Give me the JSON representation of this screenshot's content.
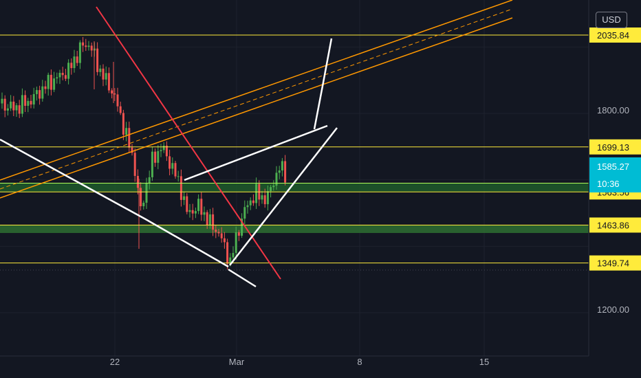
{
  "chart_data": {
    "type": "candlestick",
    "currency": "USD",
    "x_ticks": [
      "22",
      "Mar",
      "8",
      "15"
    ],
    "y_ticks": [
      "1800.00",
      "1200.00"
    ],
    "current_price": {
      "value": "1585.27",
      "countdown": "10:36",
      "color": "#00bcd4"
    },
    "levels": [
      {
        "value": 2035.84,
        "label": "2035.84"
      },
      {
        "value": 1699.13,
        "label": "1699.13"
      },
      {
        "value": 1563.56,
        "label": "1563.56"
      },
      {
        "value": 1463.86,
        "label": "1463.86"
      },
      {
        "value": 1349.74,
        "label": "1349.74"
      }
    ],
    "zones": [
      {
        "from": 1563.56,
        "to": 1590,
        "color": "#1f5a2a"
      },
      {
        "from": 1440,
        "to": 1463.86,
        "color": "#2e6e31"
      }
    ],
    "colors": {
      "up": "#26a69a",
      "up_bright": "#4caf50",
      "down": "#ef5350",
      "level": "#ffeb3b",
      "channel": "#ff9800",
      "trend": "#f23645",
      "pattern": "#ffffff"
    }
  }
}
